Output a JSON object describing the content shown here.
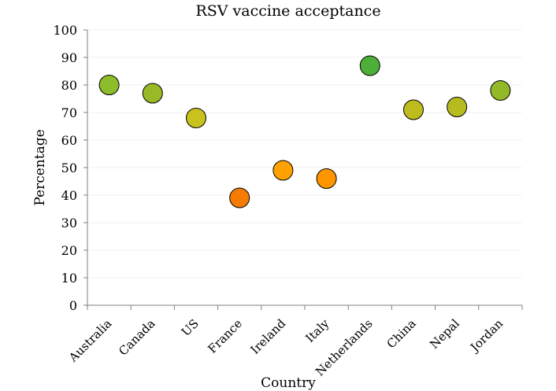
{
  "chart_data": {
    "type": "scatter",
    "title": "RSV vaccine acceptance",
    "xlabel": "Country",
    "ylabel": "Percentage",
    "ylim": [
      0,
      100
    ],
    "yticks": [
      0,
      10,
      20,
      30,
      40,
      50,
      60,
      70,
      80,
      90,
      100
    ],
    "grid": true,
    "legend": "none",
    "categories": [
      "Australia",
      "Canada",
      "US",
      "France",
      "Ireland",
      "Italy",
      "Netherlands",
      "China",
      "Nepal",
      "Jordan"
    ],
    "values": [
      80,
      77,
      68,
      39,
      49,
      46,
      87,
      71,
      72,
      78
    ],
    "colors": [
      "#8dbd2a",
      "#9ab927",
      "#c8c21c",
      "#f57c00",
      "#ffa100",
      "#ff9600",
      "#4daf38",
      "#bdbc1c",
      "#b6bb20",
      "#93b927"
    ]
  }
}
